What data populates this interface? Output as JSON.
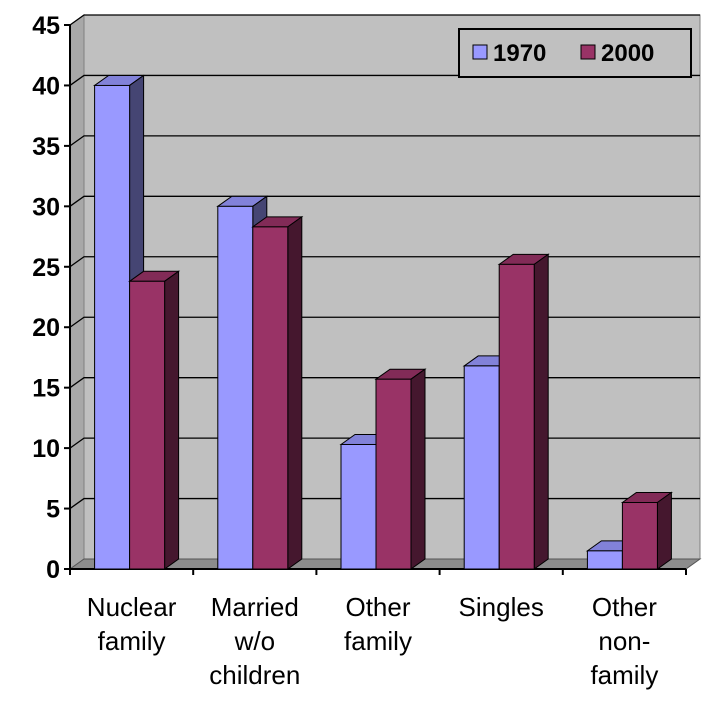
{
  "chart_data": {
    "type": "bar",
    "title": "",
    "xlabel": "",
    "ylabel": "",
    "categories": [
      [
        "Nuclear",
        "family"
      ],
      [
        "Married",
        "w/o",
        "children"
      ],
      [
        "Other",
        "family"
      ],
      [
        "Singles"
      ],
      [
        "Other",
        "non-",
        "family"
      ]
    ],
    "series": [
      {
        "name": "1970",
        "values": [
          40,
          30,
          10.3,
          16.8,
          1.5
        ],
        "color": "#9999ff"
      },
      {
        "name": "2000",
        "values": [
          23.8,
          28.3,
          15.7,
          25.2,
          5.5
        ],
        "color": "#993366"
      }
    ],
    "ylim": [
      0,
      45
    ],
    "yticks": [
      0,
      5,
      10,
      15,
      20,
      25,
      30,
      35,
      40,
      45
    ],
    "grid": true,
    "plot_background": "#c0c0c0",
    "legend_position": "top-right",
    "three_d": true
  }
}
